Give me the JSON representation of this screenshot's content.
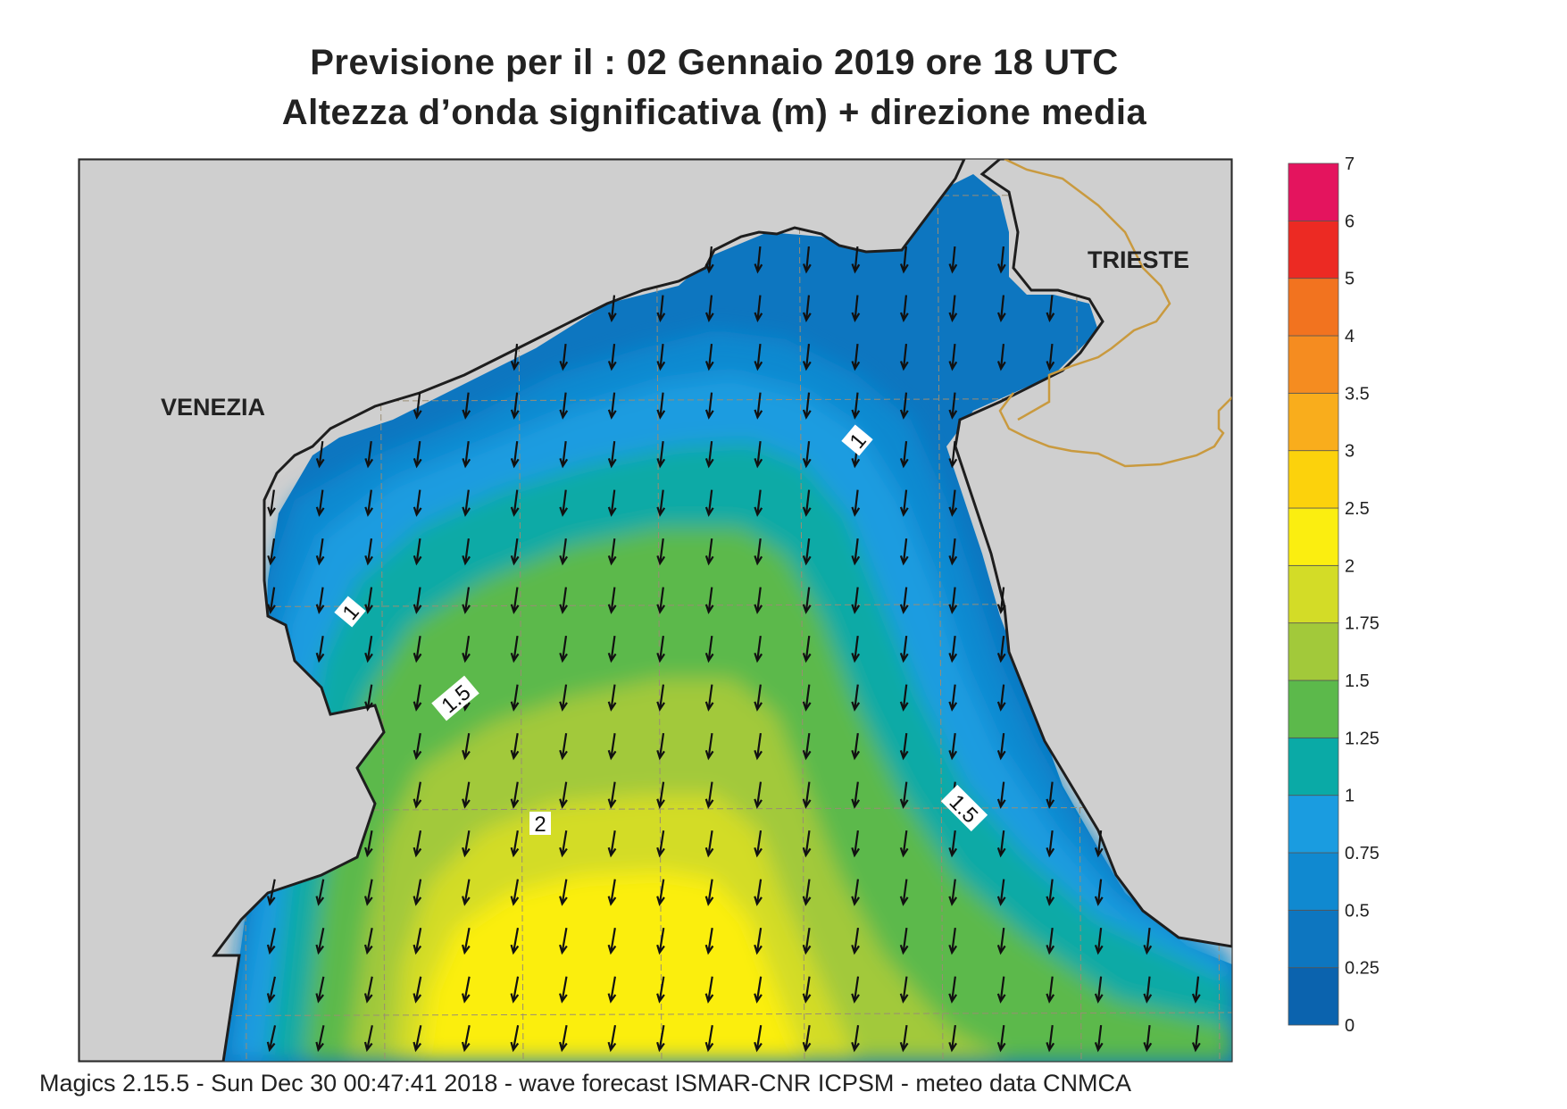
{
  "title_line1": "Previsione per il  :  02  Gennaio  2019   ore 18 UTC",
  "title_line2": "Altezza d’onda significativa (m) + direzione media",
  "footer": "Magics 2.15.5 - Sun Dec 30 00:47:41 2018 - wave forecast  ISMAR-CNR  ICPSM - meteo data   CNMCA",
  "cities": [
    {
      "name": "VENEZIA",
      "id": "venezia"
    },
    {
      "name": "TRIESTE",
      "id": "trieste"
    }
  ],
  "contour_labels": [
    "1",
    "1",
    "1.5",
    "1.5",
    "2"
  ],
  "colorbar": {
    "labels": [
      "0",
      "0.25",
      "0.5",
      "0.75",
      "1",
      "1.25",
      "1.5",
      "1.75",
      "2",
      "2.5",
      "3",
      "3.5",
      "4",
      "5",
      "6",
      "7"
    ],
    "colors": [
      "#0b63ae",
      "#0d76c0",
      "#1089d0",
      "#1a9ce0",
      "#0aaaa6",
      "#5cb94b",
      "#a2c93a",
      "#d3dc27",
      "#fbee10",
      "#fcd20c",
      "#f9ad1c",
      "#f58c20",
      "#f2731f",
      "#ec2a23",
      "#e4145e"
    ]
  },
  "colors": {
    "land": "#cfcfcf",
    "coast": "#1e1e1e",
    "border": "#c99a3f",
    "grid": "#9a8d74",
    "arrow": "#111111"
  },
  "wave_direction": "south-southwest"
}
